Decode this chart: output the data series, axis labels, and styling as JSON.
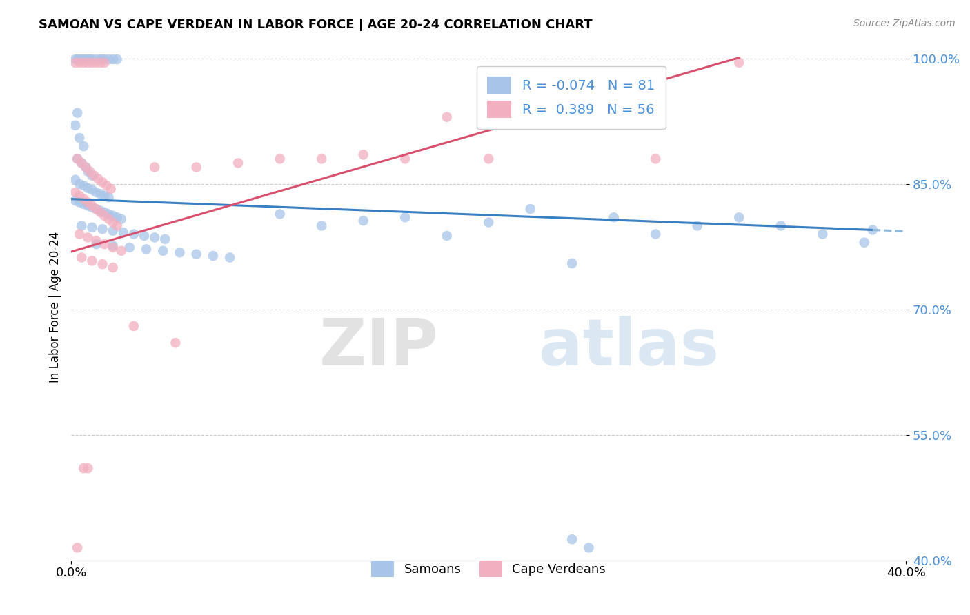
{
  "title": "SAMOAN VS CAPE VERDEAN IN LABOR FORCE | AGE 20-24 CORRELATION CHART",
  "source": "Source: ZipAtlas.com",
  "ylabel": "In Labor Force | Age 20-24",
  "xlim": [
    0.0,
    0.4
  ],
  "ylim": [
    0.4,
    1.005
  ],
  "yticks": [
    0.4,
    0.55,
    0.7,
    0.85,
    1.0
  ],
  "ytick_labels": [
    "40.0%",
    "55.0%",
    "70.0%",
    "85.0%",
    "100.0%"
  ],
  "xticks_show": [
    0.0,
    0.4
  ],
  "xtick_labels": [
    "0.0%",
    "40.0%"
  ],
  "samoans_R": -0.074,
  "samoans_N": 81,
  "cape_verdeans_R": 0.389,
  "cape_verdeans_N": 56,
  "samoans_color": "#a8c5e8",
  "cape_verdeans_color": "#f2afc0",
  "trend_samoans_color": "#3a7fc1",
  "trend_cape_verdeans_color": "#d94f6e",
  "trend_dash_color": "#90b8d8",
  "watermark_zip": "ZIP",
  "watermark_atlas": "atlas",
  "trend_samoans_x0": 0.0,
  "trend_samoans_y0": 0.832,
  "trend_samoans_x1": 0.384,
  "trend_samoans_y1": 0.795,
  "trend_samoans_dash_x0": 0.384,
  "trend_samoans_dash_x1": 0.4,
  "trend_cape_x0": 0.0,
  "trend_cape_y0": 0.769,
  "trend_cape_x1": 0.32,
  "trend_cape_y1": 1.001,
  "samoans_pts": [
    [
      0.002,
      0.999
    ],
    [
      0.004,
      0.999
    ],
    [
      0.005,
      0.999
    ],
    [
      0.006,
      0.999
    ],
    [
      0.007,
      0.999
    ],
    [
      0.008,
      0.999
    ],
    [
      0.003,
      0.999
    ],
    [
      0.009,
      0.999
    ],
    [
      0.01,
      0.999
    ],
    [
      0.012,
      0.999
    ],
    [
      0.014,
      0.999
    ],
    [
      0.015,
      0.999
    ],
    [
      0.016,
      0.999
    ],
    [
      0.018,
      0.999
    ],
    [
      0.02,
      0.999
    ],
    [
      0.022,
      0.999
    ],
    [
      0.003,
      0.935
    ],
    [
      0.002,
      0.92
    ],
    [
      0.004,
      0.905
    ],
    [
      0.006,
      0.895
    ],
    [
      0.003,
      0.88
    ],
    [
      0.005,
      0.875
    ],
    [
      0.007,
      0.87
    ],
    [
      0.008,
      0.865
    ],
    [
      0.01,
      0.86
    ],
    [
      0.002,
      0.855
    ],
    [
      0.004,
      0.85
    ],
    [
      0.006,
      0.848
    ],
    [
      0.008,
      0.845
    ],
    [
      0.01,
      0.843
    ],
    [
      0.012,
      0.84
    ],
    [
      0.014,
      0.838
    ],
    [
      0.016,
      0.836
    ],
    [
      0.018,
      0.834
    ],
    [
      0.002,
      0.83
    ],
    [
      0.004,
      0.828
    ],
    [
      0.006,
      0.826
    ],
    [
      0.008,
      0.824
    ],
    [
      0.01,
      0.822
    ],
    [
      0.012,
      0.82
    ],
    [
      0.014,
      0.818
    ],
    [
      0.016,
      0.816
    ],
    [
      0.018,
      0.814
    ],
    [
      0.02,
      0.812
    ],
    [
      0.022,
      0.81
    ],
    [
      0.024,
      0.808
    ],
    [
      0.005,
      0.8
    ],
    [
      0.01,
      0.798
    ],
    [
      0.015,
      0.796
    ],
    [
      0.02,
      0.794
    ],
    [
      0.025,
      0.792
    ],
    [
      0.03,
      0.79
    ],
    [
      0.035,
      0.788
    ],
    [
      0.04,
      0.786
    ],
    [
      0.045,
      0.784
    ],
    [
      0.012,
      0.778
    ],
    [
      0.02,
      0.776
    ],
    [
      0.028,
      0.774
    ],
    [
      0.036,
      0.772
    ],
    [
      0.044,
      0.77
    ],
    [
      0.052,
      0.768
    ],
    [
      0.06,
      0.766
    ],
    [
      0.068,
      0.764
    ],
    [
      0.076,
      0.762
    ],
    [
      0.1,
      0.814
    ],
    [
      0.12,
      0.8
    ],
    [
      0.14,
      0.806
    ],
    [
      0.16,
      0.81
    ],
    [
      0.18,
      0.788
    ],
    [
      0.2,
      0.804
    ],
    [
      0.22,
      0.82
    ],
    [
      0.24,
      0.755
    ],
    [
      0.26,
      0.81
    ],
    [
      0.28,
      0.79
    ],
    [
      0.3,
      0.8
    ],
    [
      0.32,
      0.81
    ],
    [
      0.34,
      0.8
    ],
    [
      0.36,
      0.79
    ],
    [
      0.38,
      0.78
    ],
    [
      0.384,
      0.795
    ],
    [
      0.24,
      0.425
    ],
    [
      0.248,
      0.415
    ]
  ],
  "cape_pts": [
    [
      0.002,
      0.995
    ],
    [
      0.004,
      0.995
    ],
    [
      0.006,
      0.995
    ],
    [
      0.008,
      0.995
    ],
    [
      0.01,
      0.995
    ],
    [
      0.012,
      0.995
    ],
    [
      0.014,
      0.995
    ],
    [
      0.016,
      0.995
    ],
    [
      0.003,
      0.88
    ],
    [
      0.005,
      0.875
    ],
    [
      0.007,
      0.87
    ],
    [
      0.009,
      0.865
    ],
    [
      0.011,
      0.86
    ],
    [
      0.013,
      0.856
    ],
    [
      0.015,
      0.852
    ],
    [
      0.017,
      0.848
    ],
    [
      0.019,
      0.844
    ],
    [
      0.002,
      0.84
    ],
    [
      0.004,
      0.836
    ],
    [
      0.006,
      0.832
    ],
    [
      0.008,
      0.828
    ],
    [
      0.01,
      0.824
    ],
    [
      0.012,
      0.82
    ],
    [
      0.014,
      0.816
    ],
    [
      0.016,
      0.812
    ],
    [
      0.018,
      0.808
    ],
    [
      0.02,
      0.804
    ],
    [
      0.022,
      0.8
    ],
    [
      0.004,
      0.79
    ],
    [
      0.008,
      0.786
    ],
    [
      0.012,
      0.782
    ],
    [
      0.016,
      0.778
    ],
    [
      0.02,
      0.774
    ],
    [
      0.024,
      0.77
    ],
    [
      0.005,
      0.762
    ],
    [
      0.01,
      0.758
    ],
    [
      0.015,
      0.754
    ],
    [
      0.02,
      0.75
    ],
    [
      0.04,
      0.87
    ],
    [
      0.06,
      0.87
    ],
    [
      0.08,
      0.875
    ],
    [
      0.1,
      0.88
    ],
    [
      0.12,
      0.88
    ],
    [
      0.14,
      0.885
    ],
    [
      0.16,
      0.88
    ],
    [
      0.18,
      0.93
    ],
    [
      0.2,
      0.88
    ],
    [
      0.28,
      0.88
    ],
    [
      0.32,
      0.995
    ],
    [
      0.03,
      0.68
    ],
    [
      0.05,
      0.66
    ],
    [
      0.006,
      0.51
    ],
    [
      0.008,
      0.51
    ],
    [
      0.003,
      0.415
    ]
  ]
}
